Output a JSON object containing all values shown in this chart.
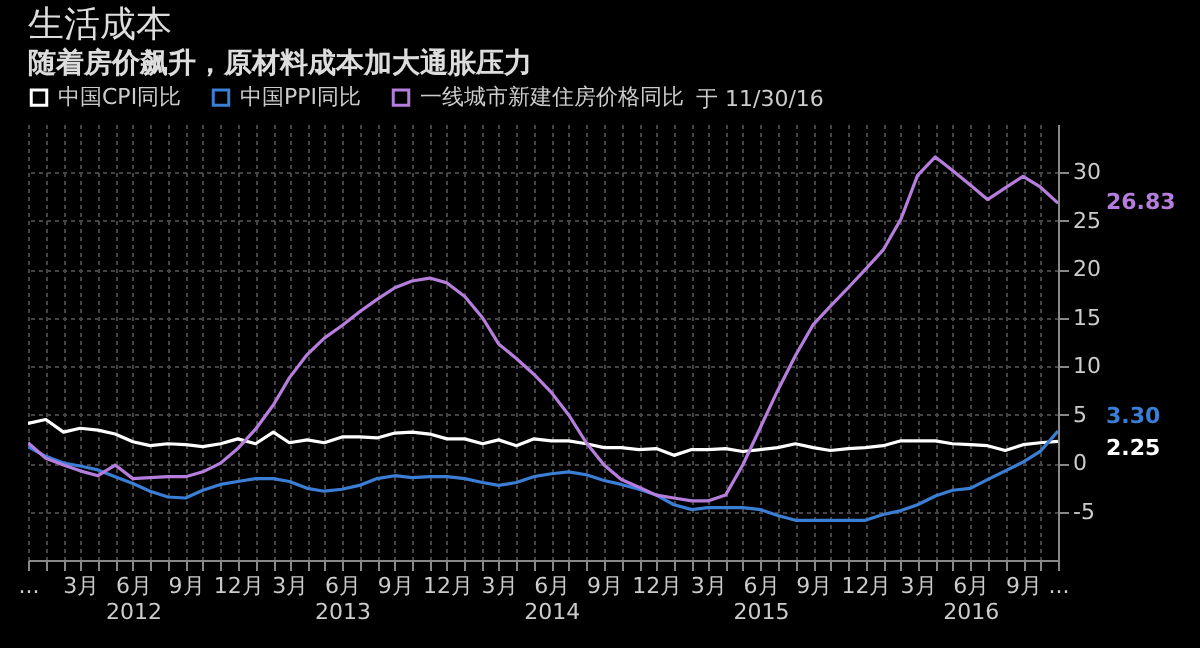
{
  "chart_data": {
    "type": "line",
    "title": "生活成本",
    "subtitle": "随着房价飙升，原材料成本加大通胀压力",
    "x": [
      "2011-12",
      "2012-01",
      "2012-02",
      "2012-03",
      "2012-04",
      "2012-05",
      "2012-06",
      "2012-07",
      "2012-08",
      "2012-09",
      "2012-10",
      "2012-11",
      "2012-12",
      "2013-01",
      "2013-02",
      "2013-03",
      "2013-04",
      "2013-05",
      "2013-06",
      "2013-07",
      "2013-08",
      "2013-09",
      "2013-10",
      "2013-11",
      "2013-12",
      "2014-01",
      "2014-02",
      "2014-03",
      "2014-04",
      "2014-05",
      "2014-06",
      "2014-07",
      "2014-08",
      "2014-09",
      "2014-10",
      "2014-11",
      "2014-12",
      "2015-01",
      "2015-02",
      "2015-03",
      "2015-04",
      "2015-05",
      "2015-06",
      "2015-07",
      "2015-08",
      "2015-09",
      "2015-10",
      "2015-11",
      "2015-12",
      "2016-01",
      "2016-02",
      "2016-03",
      "2016-04",
      "2016-05",
      "2016-06",
      "2016-07",
      "2016-08",
      "2016-09",
      "2016-10",
      "2016-11"
    ],
    "series": [
      {
        "name": "中国CPI同比",
        "color": "#ffffff",
        "values": [
          4.1,
          4.5,
          3.2,
          3.6,
          3.4,
          3.0,
          2.2,
          1.8,
          2.0,
          1.9,
          1.7,
          2.0,
          2.5,
          2.0,
          3.2,
          2.1,
          2.4,
          2.1,
          2.7,
          2.7,
          2.6,
          3.1,
          3.2,
          3.0,
          2.5,
          2.5,
          2.0,
          2.4,
          1.8,
          2.5,
          2.3,
          2.3,
          2.0,
          1.6,
          1.6,
          1.4,
          1.5,
          0.8,
          1.4,
          1.4,
          1.5,
          1.2,
          1.4,
          1.6,
          2.0,
          1.6,
          1.3,
          1.5,
          1.6,
          1.8,
          2.3,
          2.3,
          2.3,
          2.0,
          1.9,
          1.8,
          1.3,
          1.9,
          2.1,
          2.25
        ]
      },
      {
        "name": "中国PPI同比",
        "color": "#3a7fd5",
        "values": [
          1.7,
          0.7,
          0.0,
          -0.3,
          -0.7,
          -1.4,
          -2.1,
          -2.9,
          -3.5,
          -3.6,
          -2.8,
          -2.2,
          -1.9,
          -1.6,
          -1.6,
          -1.9,
          -2.6,
          -2.9,
          -2.7,
          -2.3,
          -1.6,
          -1.3,
          -1.5,
          -1.4,
          -1.4,
          -1.6,
          -2.0,
          -2.3,
          -2.0,
          -1.4,
          -1.1,
          -0.9,
          -1.2,
          -1.8,
          -2.2,
          -2.7,
          -3.3,
          -4.3,
          -4.8,
          -4.6,
          -4.6,
          -4.6,
          -4.8,
          -5.4,
          -5.9,
          -5.9,
          -5.9,
          -5.9,
          -5.9,
          -5.3,
          -4.9,
          -4.3,
          -3.4,
          -2.8,
          -2.6,
          -1.7,
          -0.8,
          0.1,
          1.2,
          3.3
        ]
      },
      {
        "name": "一线城市新建住房价格同比",
        "color": "#b57edc",
        "values": [
          2.1,
          0.5,
          -0.2,
          -0.8,
          -1.3,
          -0.2,
          -1.6,
          -1.5,
          -1.4,
          -1.4,
          -0.9,
          0,
          1.5,
          3.5,
          6,
          8.8,
          11.2,
          12.9,
          14.2,
          15.6,
          16.9,
          18.1,
          18.8,
          19.1,
          18.6,
          17.2,
          15,
          12.3,
          10.8,
          9.2,
          7.3,
          5,
          2.1,
          -0.2,
          -1.7,
          -2.5,
          -3.3,
          -3.6,
          -3.9,
          -3.9,
          -3.3,
          -0.2,
          3.7,
          7.5,
          11.1,
          14.3,
          16.2,
          18.1,
          20,
          22,
          25.2,
          29.7,
          31.6,
          30.2,
          28.7,
          27.2,
          28.4,
          29.6,
          28.5,
          26.83
        ]
      }
    ],
    "annotations": [
      "于 11/30/16",
      {
        "text": "26.83",
        "x": "2016-11",
        "y": 26.83
      },
      {
        "text": "3.30",
        "x": "2016-11",
        "y": 3.3
      },
      {
        "text": "2.25",
        "x": "2016-11",
        "y": 2.25
      }
    ],
    "xlim": [
      "2011-12",
      "2016-11"
    ],
    "xticks": [
      {
        "value": "2011-12",
        "label": "..."
      },
      {
        "value": "2012-01",
        "label": null
      },
      {
        "value": "2012-02",
        "label": null
      },
      {
        "value": "2012-03",
        "label": "3月"
      },
      {
        "value": "2012-04",
        "label": null
      },
      {
        "value": "2012-05",
        "label": null
      },
      {
        "value": "2012-06",
        "label": "6月\n2012"
      },
      {
        "value": "2012-07",
        "label": null
      },
      {
        "value": "2012-08",
        "label": null
      },
      {
        "value": "2012-09",
        "label": "9月"
      },
      {
        "value": "2012-10",
        "label": null
      },
      {
        "value": "2012-11",
        "label": null
      },
      {
        "value": "2012-12",
        "label": "12月"
      },
      {
        "value": "2013-01",
        "label": null
      },
      {
        "value": "2013-02",
        "label": null
      },
      {
        "value": "2013-03",
        "label": "3月"
      },
      {
        "value": "2013-04",
        "label": null
      },
      {
        "value": "2013-05",
        "label": null
      },
      {
        "value": "2013-06",
        "label": "6月\n2013"
      },
      {
        "value": "2013-07",
        "label": null
      },
      {
        "value": "2013-08",
        "label": null
      },
      {
        "value": "2013-09",
        "label": "9月"
      },
      {
        "value": "2013-10",
        "label": null
      },
      {
        "value": "2013-11",
        "label": null
      },
      {
        "value": "2013-12",
        "label": "12月"
      },
      {
        "value": "2014-01",
        "label": null
      },
      {
        "value": "2014-02",
        "label": null
      },
      {
        "value": "2014-03",
        "label": "3月"
      },
      {
        "value": "2014-04",
        "label": null
      },
      {
        "value": "2014-05",
        "label": null
      },
      {
        "value": "2014-06",
        "label": "6月\n2014"
      },
      {
        "value": "2014-07",
        "label": null
      },
      {
        "value": "2014-08",
        "label": null
      },
      {
        "value": "2014-09",
        "label": "9月"
      },
      {
        "value": "2014-10",
        "label": null
      },
      {
        "value": "2014-11",
        "label": null
      },
      {
        "value": "2014-12",
        "label": "12月"
      },
      {
        "value": "2015-01",
        "label": null
      },
      {
        "value": "2015-02",
        "label": null
      },
      {
        "value": "2015-03",
        "label": "3月"
      },
      {
        "value": "2015-04",
        "label": null
      },
      {
        "value": "2015-05",
        "label": null
      },
      {
        "value": "2015-06",
        "label": "6月\n2015"
      },
      {
        "value": "2015-07",
        "label": null
      },
      {
        "value": "2015-08",
        "label": null
      },
      {
        "value": "2015-09",
        "label": "9月"
      },
      {
        "value": "2015-10",
        "label": null
      },
      {
        "value": "2015-11",
        "label": null
      },
      {
        "value": "2015-12",
        "label": "12月"
      },
      {
        "value": "2016-01",
        "label": null
      },
      {
        "value": "2016-02",
        "label": null
      },
      {
        "value": "2016-03",
        "label": "3月"
      },
      {
        "value": "2016-04",
        "label": null
      },
      {
        "value": "2016-05",
        "label": null
      },
      {
        "value": "2016-06",
        "label": "6月\n2016"
      },
      {
        "value": "2016-07",
        "label": null
      },
      {
        "value": "2016-08",
        "label": null
      },
      {
        "value": "2016-09",
        "label": "9月"
      },
      {
        "value": "2016-10",
        "label": null
      },
      {
        "value": "2016-11",
        "label": "..."
      }
    ],
    "ylim": [
      -10,
      35
    ],
    "yticks": [
      -5,
      0,
      5,
      10,
      15,
      20,
      25,
      30
    ],
    "grid": true,
    "legend": "top left"
  }
}
